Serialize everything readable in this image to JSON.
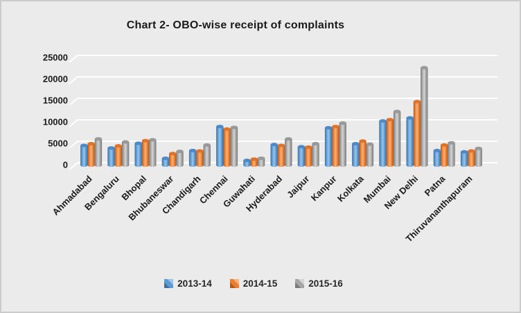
{
  "chart_data": {
    "type": "bar",
    "style": "3d-cylinder",
    "title": "Chart 2- OBO-wise receipt of complaints",
    "xlabel": "",
    "ylabel": "",
    "ylim": [
      0,
      25000
    ],
    "ytick_interval": 5000,
    "ytick_labels": [
      "0",
      "5000",
      "10000",
      "15000",
      "20000",
      "25000"
    ],
    "grid": true,
    "legend_position": "bottom",
    "background_color": "#EBEBEB",
    "gridline_color": "#FFFFFF",
    "text_color": "#1A1A1A",
    "categories": [
      "Ahmadabad",
      "Bengaluru",
      "Bhopal",
      "Bhubaneswar",
      "Chandigarh",
      "Chennai",
      "Guwahati",
      "Hyderabad",
      "Jaipur",
      "Kanpur",
      "Kolkata",
      "Mumbai",
      "New Delhi",
      "Patna",
      "Thiruvananthapuram"
    ],
    "series": [
      {
        "name": "2013-14",
        "color": "#5B9BD5",
        "color_light": "#9DC3E6",
        "color_dark": "#3F6E9C",
        "color_top": "#4E8AC8",
        "values": [
          4600,
          4000,
          5100,
          1600,
          3400,
          9000,
          1100,
          4800,
          4300,
          8700,
          5000,
          10300,
          11000,
          3400,
          3100
        ]
      },
      {
        "name": "2014-15",
        "color": "#ED7D31",
        "color_light": "#F8B377",
        "color_dark": "#AE5A21",
        "color_top": "#DF732A",
        "values": [
          5000,
          4500,
          5700,
          2700,
          3300,
          8400,
          1400,
          4600,
          4200,
          9000,
          5600,
          10600,
          14800,
          4700,
          3300
        ]
      },
      {
        "name": "2015-16",
        "color": "#A5A5A5",
        "color_light": "#D4D4D4",
        "color_dark": "#7A7A7A",
        "color_top": "#999999",
        "values": [
          6100,
          5400,
          5900,
          3200,
          4700,
          8800,
          1600,
          6100,
          5000,
          9800,
          4900,
          12500,
          22700,
          5200,
          3900
        ]
      }
    ]
  }
}
